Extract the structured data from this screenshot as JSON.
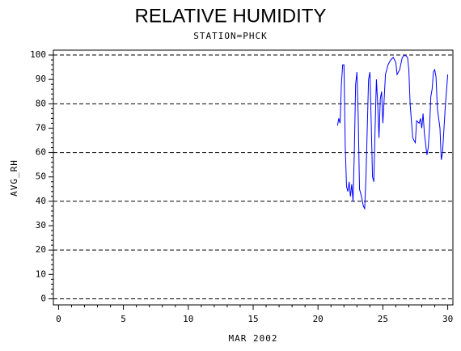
{
  "chart_data": {
    "type": "line",
    "title": "RELATIVE HUMIDITY",
    "subtitle": "STATION=PHCK",
    "x_label": "MAR 2002",
    "y_label": "AVG_RH",
    "x": [
      21.5,
      21.6,
      21.7,
      21.8,
      21.9,
      22.0,
      22.1,
      22.2,
      22.3,
      22.4,
      22.5,
      22.6,
      22.7,
      22.8,
      22.9,
      23.0,
      23.1,
      23.2,
      23.35,
      23.5,
      23.6,
      23.7,
      23.8,
      23.9,
      24.0,
      24.1,
      24.2,
      24.3,
      24.4,
      24.5,
      24.6,
      24.7,
      24.8,
      24.9,
      25.0,
      25.1,
      25.2,
      25.4,
      25.6,
      25.8,
      26.0,
      26.1,
      26.3,
      26.5,
      26.7,
      26.9,
      27.0,
      27.1,
      27.3,
      27.5,
      27.6,
      27.8,
      27.9,
      28.0,
      28.1,
      28.2,
      28.4,
      28.5,
      28.6,
      28.7,
      28.8,
      28.9,
      29.0,
      29.1,
      29.2,
      29.4,
      29.5,
      29.6,
      29.8,
      29.9,
      30.0
    ],
    "series": [
      {
        "name": "AVG_RH",
        "color": "#0000ff",
        "values": [
          71,
          74,
          72,
          88,
          96,
          96,
          62,
          46,
          44,
          48,
          42,
          47,
          40,
          60,
          88,
          93,
          75,
          45,
          42,
          38,
          37,
          50,
          70,
          90,
          93,
          72,
          50,
          48,
          70,
          90,
          80,
          66,
          82,
          85,
          72,
          82,
          92,
          96,
          98,
          99,
          97,
          92,
          94,
          99,
          100,
          99,
          94,
          80,
          66,
          64,
          73,
          72,
          74,
          70,
          76,
          68,
          59,
          62,
          70,
          83,
          86,
          93,
          94,
          91,
          78,
          70,
          57,
          60,
          78,
          85,
          92
        ]
      }
    ],
    "xlim": [
      -0.4,
      30.4
    ],
    "ylim": [
      -2.5,
      102
    ],
    "xticks": [
      0,
      5,
      10,
      15,
      20,
      25,
      30
    ],
    "yticks": [
      0,
      10,
      20,
      30,
      40,
      50,
      60,
      70,
      80,
      90,
      100
    ],
    "grid_ticks": [
      0,
      20,
      40,
      60,
      80,
      100
    ],
    "grid": true
  }
}
